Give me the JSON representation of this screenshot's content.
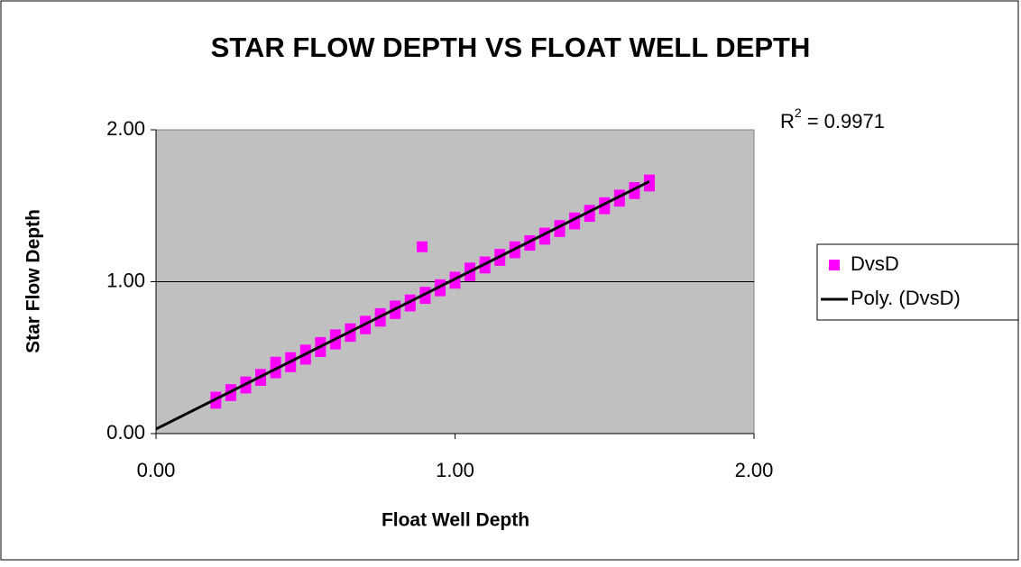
{
  "chart_data": {
    "type": "scatter",
    "title": "STAR FLOW DEPTH VS FLOAT WELL DEPTH",
    "x_label": "Float Well Depth",
    "y_label": "Star Flow Depth",
    "annotation": {
      "r_text": "R",
      "r_sup": "2",
      "r_value": "= 0.9971"
    },
    "xlim": [
      0,
      2
    ],
    "ylim": [
      0,
      2
    ],
    "xticks": [
      {
        "value": 0,
        "label": "0.00"
      },
      {
        "value": 1,
        "label": "1.00"
      },
      {
        "value": 2,
        "label": "2.00"
      }
    ],
    "yticks": [
      {
        "value": 0,
        "label": "0.00"
      },
      {
        "value": 1,
        "label": "1.00"
      },
      {
        "value": 2,
        "label": "2.00"
      }
    ],
    "grid": true,
    "series": [
      {
        "name": "DvsD",
        "color": "#ff00ff",
        "kind": "scatter",
        "x": [
          0.2,
          0.25,
          0.3,
          0.35,
          0.4,
          0.45,
          0.5,
          0.55,
          0.6,
          0.65,
          0.7,
          0.75,
          0.8,
          0.85,
          0.9,
          0.95,
          1.0,
          1.05,
          1.1,
          1.15,
          1.2,
          1.25,
          1.3,
          1.35,
          1.4,
          1.45,
          1.5,
          1.55,
          1.6,
          1.65,
          0.2,
          0.25,
          0.3,
          0.35,
          0.4,
          0.45,
          0.5,
          0.55,
          0.6,
          0.65,
          0.7,
          0.75,
          0.8,
          0.85,
          0.9,
          0.95,
          1.0,
          1.05,
          1.1,
          1.15,
          1.2,
          1.25,
          1.3,
          1.35,
          1.4,
          1.45,
          1.5,
          1.55,
          1.6,
          1.65,
          0.89
        ],
        "values": [
          0.2,
          0.25,
          0.3,
          0.35,
          0.4,
          0.44,
          0.49,
          0.54,
          0.59,
          0.64,
          0.69,
          0.74,
          0.79,
          0.84,
          0.89,
          0.94,
          0.99,
          1.04,
          1.09,
          1.14,
          1.19,
          1.24,
          1.28,
          1.33,
          1.38,
          1.43,
          1.48,
          1.53,
          1.58,
          1.63,
          0.24,
          0.29,
          0.34,
          0.39,
          0.47,
          0.5,
          0.55,
          0.6,
          0.65,
          0.69,
          0.74,
          0.79,
          0.84,
          0.88,
          0.93,
          0.98,
          1.03,
          1.09,
          1.13,
          1.18,
          1.23,
          1.27,
          1.32,
          1.37,
          1.42,
          1.47,
          1.52,
          1.57,
          1.62,
          1.67,
          1.23
        ]
      },
      {
        "name": "Poly. (DvsD)",
        "color": "#000000",
        "kind": "line",
        "x": [
          0,
          1.65
        ],
        "values": [
          0.03,
          1.66
        ]
      }
    ]
  }
}
